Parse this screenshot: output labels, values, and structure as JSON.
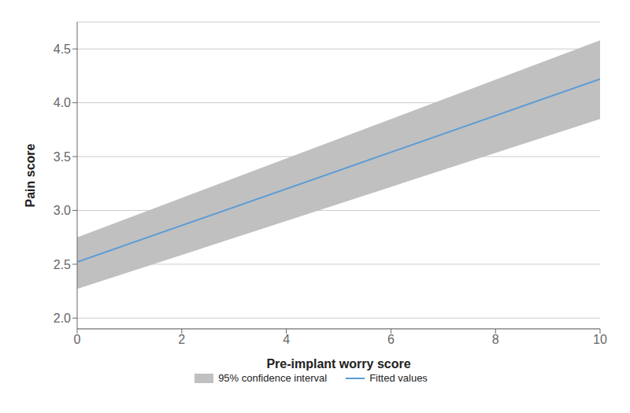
{
  "chart_data": {
    "type": "line",
    "xlabel": "Pre-implant worry score",
    "ylabel": "Pain score",
    "x": [
      0,
      10
    ],
    "series": [
      {
        "name": "Fitted values",
        "color": "#5b9bd5",
        "values": [
          2.52,
          4.22
        ]
      }
    ],
    "band": {
      "name": "95% confidence interval",
      "color": "#c0c0c0",
      "lower": [
        2.27,
        3.85
      ],
      "upper": [
        2.75,
        4.58
      ]
    },
    "xlim": [
      0,
      10
    ],
    "ylim": [
      1.9,
      4.75
    ],
    "xticks": [
      0,
      2,
      4,
      6,
      8,
      10
    ],
    "yticks": [
      {
        "value": 2.0,
        "label": "2.0"
      },
      2.5,
      {
        "value": 3.0,
        "label": "3.0"
      },
      3.5,
      {
        "value": 4.0,
        "label": "4.0"
      },
      4.5
    ],
    "grid": true,
    "legend": "bottom"
  }
}
